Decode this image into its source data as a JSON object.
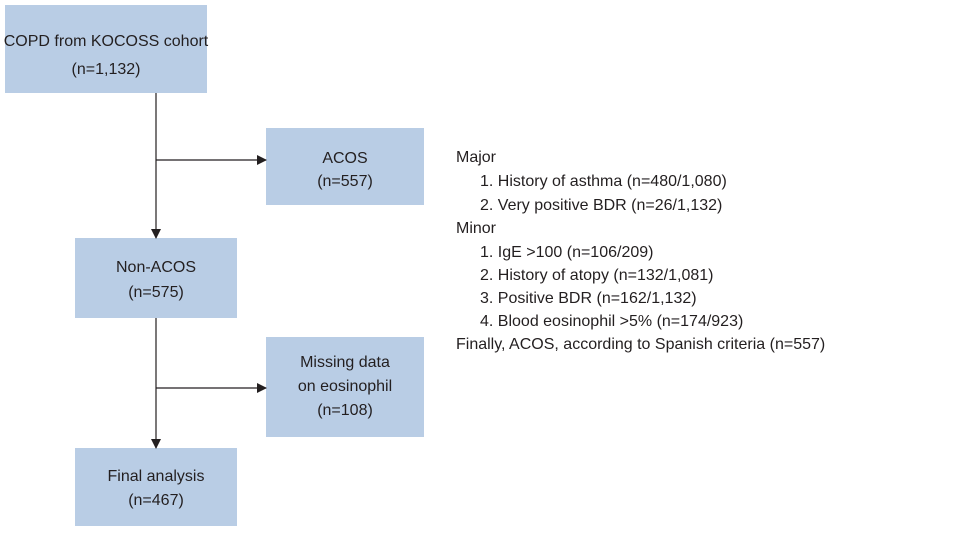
{
  "nodes": [
    {
      "lines": [
        "COPD from KOCOSS cohort",
        "(n=1,132)"
      ]
    },
    {
      "lines": [
        "ACOS",
        "(n=557)"
      ]
    },
    {
      "lines": [
        "Non-ACOS",
        "(n=575)"
      ]
    },
    {
      "lines": [
        "Missing data",
        "on eosinophil",
        "(n=108)"
      ]
    },
    {
      "lines": [
        "Final analysis",
        "(n=467)"
      ]
    }
  ],
  "criteria": {
    "major": {
      "heading": "Major",
      "items": [
        "1. History of asthma (n=480/1,080)",
        "2. Very positive BDR (n=26/1,132)"
      ]
    },
    "minor": {
      "heading": "Minor",
      "items": [
        "1. IgE >100 (n=106/209)",
        "2. History of atopy (n=132/1,081)",
        "3. Positive BDR (n=162/1,132)",
        "4. Blood eosinophil >5% (n=174/923)"
      ]
    },
    "conclusion": "Finally, ACOS, according to Spanish criteria (n=557)"
  }
}
